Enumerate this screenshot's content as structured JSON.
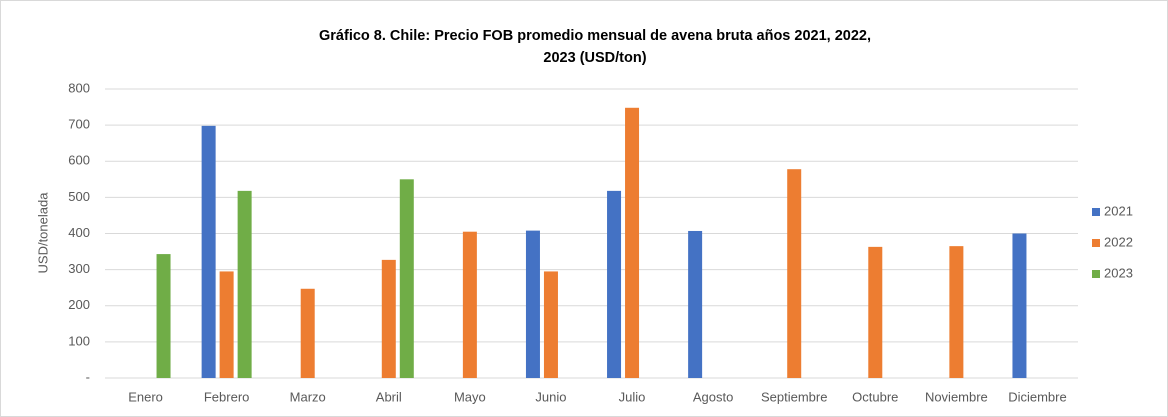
{
  "chart_data": {
    "type": "bar",
    "title": [
      "Gráfico 8. Chile: Precio FOB promedio mensual de avena bruta años 2021, 2022,",
      "2023 (USD/ton)"
    ],
    "y_label": "USD/tonelada",
    "categories": [
      "Enero",
      "Febrero",
      "Marzo",
      "Abril",
      "Mayo",
      "Junio",
      "Julio",
      "Agosto",
      "Septiembre",
      "Octubre",
      "Noviembre",
      "Diciembre"
    ],
    "series": [
      {
        "name": "2021",
        "color": "#4472c4",
        "values": [
          null,
          698,
          null,
          null,
          null,
          408,
          518,
          407,
          null,
          null,
          null,
          400
        ]
      },
      {
        "name": "2022",
        "color": "#ed7d31",
        "values": [
          null,
          295,
          247,
          327,
          405,
          295,
          748,
          null,
          578,
          363,
          365,
          null
        ]
      },
      {
        "name": "2023",
        "color": "#70ad47",
        "values": [
          343,
          518,
          null,
          550,
          null,
          null,
          null,
          null,
          null,
          null,
          null,
          null
        ]
      }
    ],
    "ylim": [
      0,
      800
    ],
    "yticks": [
      {
        "value": 0,
        "label": "-"
      },
      100,
      200,
      300,
      400,
      500,
      600,
      700,
      800
    ],
    "grid": true,
    "legend": "right"
  }
}
